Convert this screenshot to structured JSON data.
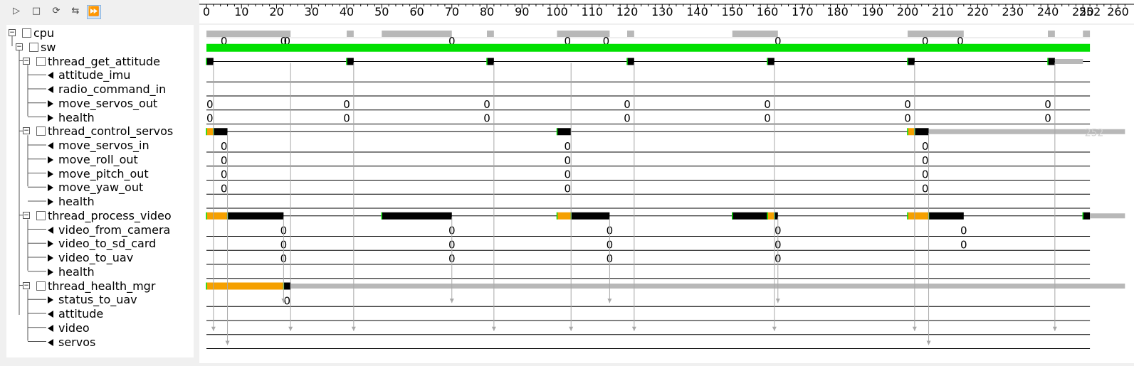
{
  "toolbar": {
    "buttons": [
      {
        "name": "play-icon",
        "glyph": "▷"
      },
      {
        "name": "stop-icon",
        "glyph": "□"
      },
      {
        "name": "refresh-icon",
        "glyph": "⟳"
      },
      {
        "name": "step-icon",
        "glyph": "⇆"
      },
      {
        "name": "fast-forward-icon",
        "glyph": "⏩"
      }
    ]
  },
  "ruler": {
    "ticks": [
      "0",
      "10",
      "20",
      "30",
      "40",
      "50",
      "60",
      "70",
      "80",
      "90",
      "100",
      "110",
      "120",
      "130",
      "140",
      "150",
      "160",
      "170",
      "180",
      "190",
      "200",
      "210",
      "220",
      "230",
      "240",
      "250",
      "260"
    ],
    "end_label": "252"
  },
  "tree": [
    {
      "label": "cpu",
      "kind": "cpu"
    },
    {
      "label": "sw",
      "kind": "sw"
    },
    {
      "label": "thread_get_attitude",
      "kind": "thread"
    },
    {
      "label": "attitude_imu",
      "kind": "in"
    },
    {
      "label": "radio_command_in",
      "kind": "in"
    },
    {
      "label": "move_servos_out",
      "kind": "out"
    },
    {
      "label": "health",
      "kind": "out"
    },
    {
      "label": "thread_control_servos",
      "kind": "thread"
    },
    {
      "label": "move_servos_in",
      "kind": "in"
    },
    {
      "label": "move_roll_out",
      "kind": "out"
    },
    {
      "label": "move_pitch_out",
      "kind": "out"
    },
    {
      "label": "move_yaw_out",
      "kind": "out"
    },
    {
      "label": "health",
      "kind": "out"
    },
    {
      "label": "thread_process_video",
      "kind": "thread"
    },
    {
      "label": "video_from_camera",
      "kind": "in"
    },
    {
      "label": "video_to_sd_card",
      "kind": "out"
    },
    {
      "label": "video_to_uav",
      "kind": "out"
    },
    {
      "label": "health",
      "kind": "out"
    },
    {
      "label": "thread_health_mgr",
      "kind": "thread"
    },
    {
      "label": "status_to_uav",
      "kind": "out"
    },
    {
      "label": "attitude",
      "kind": "in"
    },
    {
      "label": "video",
      "kind": "in"
    },
    {
      "label": "servos",
      "kind": "in"
    }
  ],
  "timeline": {
    "zero_label": "0",
    "end_label": "252",
    "colors": {
      "grey": "#b8b8b8",
      "green": "#00e000",
      "orange": "#f5a000",
      "black": "#000000",
      "line": "#000000",
      "arrow": "#a8a8a8"
    },
    "cpu_segments": [
      [
        0,
        24
      ],
      [
        40,
        42
      ],
      [
        50,
        70
      ],
      [
        80,
        82
      ],
      [
        100,
        115
      ],
      [
        120,
        122
      ],
      [
        150,
        163
      ],
      [
        200,
        216
      ],
      [
        240,
        242
      ],
      [
        250,
        252
      ]
    ],
    "cpu_labels": [
      5,
      22,
      23,
      70,
      103,
      114,
      163,
      205,
      215
    ],
    "sw_bar": [
      0,
      252
    ],
    "threads": [
      {
        "row": 2,
        "segments": [
          {
            "from": 0,
            "to": 2,
            "c": "black"
          },
          {
            "from": 40,
            "to": 42,
            "c": "black"
          },
          {
            "from": 80,
            "to": 82,
            "c": "black"
          },
          {
            "from": 120,
            "to": 122,
            "c": "black"
          },
          {
            "from": 160,
            "to": 162,
            "c": "black"
          },
          {
            "from": 200,
            "to": 202,
            "c": "black"
          },
          {
            "from": 240,
            "to": 242,
            "c": "black"
          },
          {
            "from": 242,
            "to": 250,
            "c": "grey"
          }
        ]
      },
      {
        "row": 7,
        "segments": [
          {
            "from": 0,
            "to": 2,
            "c": "orange"
          },
          {
            "from": 2,
            "to": 6,
            "c": "black"
          },
          {
            "from": 100,
            "to": 104,
            "c": "black"
          },
          {
            "from": 200,
            "to": 202,
            "c": "orange"
          },
          {
            "from": 202,
            "to": 206,
            "c": "black"
          },
          {
            "from": 206,
            "to": 262,
            "c": "grey"
          }
        ]
      },
      {
        "row": 13,
        "segments": [
          {
            "from": 0,
            "to": 6,
            "c": "orange"
          },
          {
            "from": 6,
            "to": 22,
            "c": "black"
          },
          {
            "from": 50,
            "to": 70,
            "c": "black"
          },
          {
            "from": 100,
            "to": 104,
            "c": "orange"
          },
          {
            "from": 104,
            "to": 115,
            "c": "black"
          },
          {
            "from": 150,
            "to": 160,
            "c": "black"
          },
          {
            "from": 160,
            "to": 162,
            "c": "orange"
          },
          {
            "from": 162,
            "to": 163,
            "c": "black"
          },
          {
            "from": 200,
            "to": 206,
            "c": "orange"
          },
          {
            "from": 206,
            "to": 216,
            "c": "black"
          },
          {
            "from": 250,
            "to": 252,
            "c": "black"
          },
          {
            "from": 252,
            "to": 262,
            "c": "grey"
          }
        ]
      },
      {
        "row": 18,
        "segments": [
          {
            "from": 0,
            "to": 22,
            "c": "orange"
          },
          {
            "from": 22,
            "to": 24,
            "c": "black"
          },
          {
            "from": 24,
            "to": 262,
            "c": "grey"
          }
        ]
      }
    ],
    "value_rows": [
      {
        "row": 5,
        "xs": [
          0,
          40,
          80,
          120,
          160,
          200,
          240
        ]
      },
      {
        "row": 6,
        "xs": [
          0,
          40,
          80,
          120,
          160,
          200,
          240
        ]
      },
      {
        "row": 8,
        "xs": [
          5,
          103,
          205
        ]
      },
      {
        "row": 9,
        "xs": [
          5,
          103,
          205
        ]
      },
      {
        "row": 10,
        "xs": [
          5,
          103,
          205
        ]
      },
      {
        "row": 11,
        "xs": [
          5,
          103,
          205
        ]
      },
      {
        "row": 14,
        "xs": [
          22,
          70,
          115,
          163,
          216
        ]
      },
      {
        "row": 15,
        "xs": [
          22,
          70,
          115,
          163,
          216
        ]
      },
      {
        "row": 16,
        "xs": [
          22,
          70,
          115,
          163
        ]
      },
      {
        "row": 19,
        "xs": [
          23
        ]
      }
    ],
    "arrows": [
      {
        "x": 2,
        "from": 2,
        "to": 21
      },
      {
        "x": 6,
        "from": 7,
        "to": 22
      },
      {
        "x": 22,
        "from": 13,
        "to": 19
      },
      {
        "x": 24,
        "from": 2,
        "to": 21
      },
      {
        "x": 42,
        "from": 2,
        "to": 21
      },
      {
        "x": 70,
        "from": 13,
        "to": 19
      },
      {
        "x": 82,
        "from": 2,
        "to": 21
      },
      {
        "x": 104,
        "from": 2,
        "to": 21
      },
      {
        "x": 115,
        "from": 13,
        "to": 19
      },
      {
        "x": 122,
        "from": 2,
        "to": 21
      },
      {
        "x": 162,
        "from": 2,
        "to": 21
      },
      {
        "x": 163,
        "from": 13,
        "to": 19
      },
      {
        "x": 202,
        "from": 2,
        "to": 21
      },
      {
        "x": 206,
        "from": 7,
        "to": 22
      },
      {
        "x": 242,
        "from": 2,
        "to": 21
      }
    ]
  }
}
